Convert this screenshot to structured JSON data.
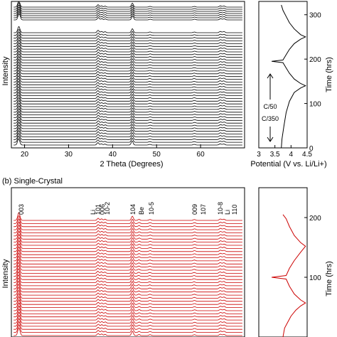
{
  "figure": {
    "panel_b_label": "(b) Single-Crystal"
  },
  "chart_data": [
    {
      "type": "line",
      "panel": "a",
      "description_type": "stacked XRD patterns",
      "xlabel": "2 Theta (Degrees)",
      "ylabel": "Intensity",
      "xlim": [
        17,
        70
      ],
      "xticks": [
        20,
        30,
        40,
        50,
        60
      ],
      "n_patterns_lower": 42,
      "n_patterns_upper": 7,
      "pattern_color": "#000000",
      "peaks": [
        {
          "x": 18.7,
          "h": 2.2,
          "w": 0.25
        },
        {
          "x": 36.7,
          "h": 0.85,
          "w": 0.22
        },
        {
          "x": 37.5,
          "h": 0.45,
          "w": 0.22
        },
        {
          "x": 38.3,
          "h": 0.35,
          "w": 0.22
        },
        {
          "x": 44.5,
          "h": 1.4,
          "w": 0.22
        },
        {
          "x": 48.5,
          "h": 0.25,
          "w": 0.25
        },
        {
          "x": 58.6,
          "h": 0.25,
          "w": 0.25
        },
        {
          "x": 64.5,
          "h": 0.45,
          "w": 0.25
        },
        {
          "x": 65.3,
          "h": 0.4,
          "w": 0.25
        }
      ]
    },
    {
      "type": "line",
      "panel": "a-right",
      "xlabel": "Potential (V vs. Li/Li+)",
      "ylabel": "Time (hrs)",
      "xlim": [
        3.0,
        4.5
      ],
      "ylim": [
        0,
        330
      ],
      "xticks": [
        3,
        3.5,
        4,
        4.5
      ],
      "yticks": [
        0,
        100,
        200,
        300
      ],
      "annotations": [
        "C/50",
        "C/350"
      ],
      "color": "#000000",
      "series": [
        {
          "x": [
            3.7,
            3.72,
            3.78,
            3.85,
            3.95,
            4.1,
            4.3,
            4.45,
            4.3,
            4.1,
            3.95,
            3.85,
            3.75,
            3.4,
            3.75,
            3.85,
            3.95,
            4.1,
            4.3,
            4.45,
            4.3,
            4.1,
            3.95,
            3.85,
            3.75,
            3.7
          ],
          "y": [
            0,
            20,
            50,
            80,
            105,
            125,
            135,
            140,
            145,
            155,
            168,
            180,
            192,
            195,
            198,
            210,
            222,
            235,
            245,
            250,
            255,
            268,
            282,
            296,
            310,
            322
          ]
        }
      ]
    },
    {
      "type": "line",
      "panel": "b",
      "description_type": "stacked XRD patterns",
      "ylabel": "Intensity",
      "xlim": [
        17,
        70
      ],
      "n_patterns": 38,
      "pattern_color": "#cc0000",
      "peak_labels": [
        "003",
        "Li",
        "101",
        "006",
        "10-2",
        "104",
        "Be",
        "10-5",
        "009",
        "107",
        "10-8",
        "Li",
        "110"
      ],
      "peaks": [
        {
          "x": 18.7,
          "h": 2.2,
          "w": 0.25
        },
        {
          "x": 36.7,
          "h": 0.6,
          "w": 0.22
        },
        {
          "x": 37.5,
          "h": 0.45,
          "w": 0.22
        },
        {
          "x": 38.3,
          "h": 0.35,
          "w": 0.22
        },
        {
          "x": 44.5,
          "h": 1.2,
          "w": 0.22
        },
        {
          "x": 46.0,
          "h": 0.3,
          "w": 0.22
        },
        {
          "x": 48.5,
          "h": 0.25,
          "w": 0.25
        },
        {
          "x": 58.6,
          "h": 0.25,
          "w": 0.25
        },
        {
          "x": 64.5,
          "h": 0.4,
          "w": 0.25
        },
        {
          "x": 65.3,
          "h": 0.35,
          "w": 0.25
        }
      ]
    },
    {
      "type": "line",
      "panel": "b-right",
      "ylabel": "Time (hrs)",
      "ylim": [
        0,
        250
      ],
      "yticks": [
        100,
        200
      ],
      "color": "#cc0000",
      "series": [
        {
          "x": [
            3.75,
            3.8,
            3.9,
            4.0,
            4.15,
            4.3,
            4.45,
            4.3,
            4.1,
            3.95,
            3.85,
            3.4,
            3.85,
            3.95,
            4.1,
            4.3,
            4.45,
            4.3,
            4.1,
            3.95,
            3.85,
            3.75
          ],
          "y": [
            0,
            15,
            25,
            35,
            45,
            52,
            57,
            62,
            72,
            85,
            97,
            100,
            103,
            115,
            128,
            142,
            152,
            158,
            170,
            185,
            198,
            205
          ]
        }
      ]
    }
  ]
}
